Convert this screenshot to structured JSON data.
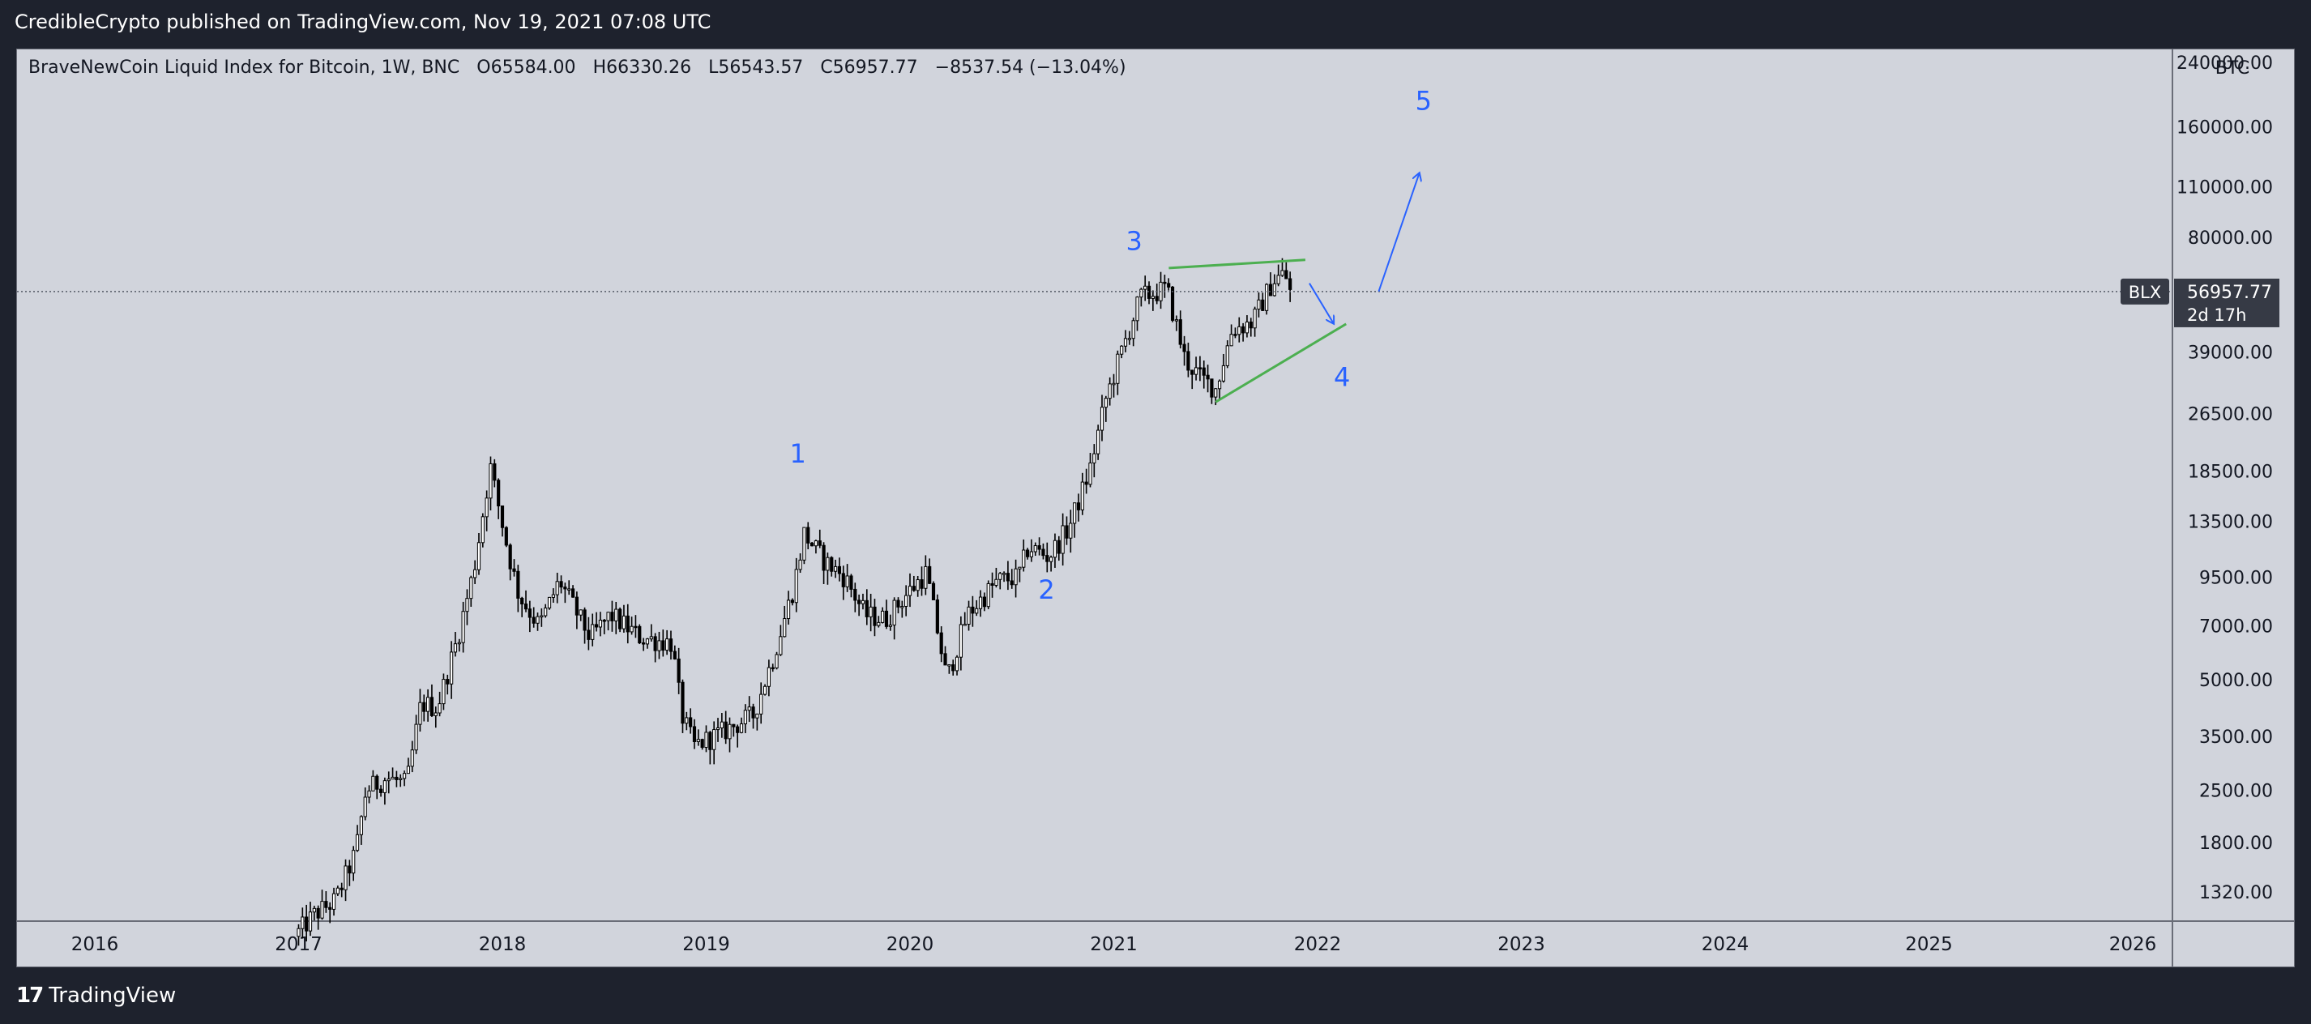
{
  "header": {
    "publisher_line": "CredibleCrypto published on TradingView.com, Nov 19, 2021 07:08 UTC"
  },
  "legend": {
    "title": "BraveNewCoin Liquid Index for Bitcoin, 1W, BNC",
    "open": "O65584.00",
    "high": "H66330.26",
    "low": "L56543.57",
    "close": "C56957.77",
    "change": "−8537.54 (−13.04%)"
  },
  "footer": {
    "brand": "TradingView"
  },
  "colors": {
    "background": "#d1d4dc",
    "candle": "#000000",
    "wave_label": "#2962ff",
    "trendline": "#4caf50",
    "arrow": "#2962ff",
    "price_tag": "#363a45"
  },
  "chart_data": {
    "type": "candlestick",
    "symbol": "BLX",
    "timeframe": "1W",
    "y_scale": "log",
    "ylim": [
      1100,
      260000
    ],
    "y_unit": "BTC",
    "y_ticks": [
      "240000.00",
      "160000.00",
      "110000.00",
      "80000.00",
      "39000.00",
      "26500.00",
      "18500.00",
      "13500.00",
      "9500.00",
      "7000.00",
      "5000.00",
      "3500.00",
      "2500.00",
      "1800.00",
      "1320.00"
    ],
    "x_ticks": [
      "2016",
      "2017",
      "2018",
      "2019",
      "2020",
      "2021",
      "2022",
      "2023",
      "2024",
      "2025",
      "2026"
    ],
    "last_price": {
      "symbol": "BLX",
      "value": "56957.77",
      "countdown": "2d 17h"
    },
    "price_path": [
      [
        2017.0,
        1000
      ],
      [
        2017.1,
        1150
      ],
      [
        2017.2,
        1250
      ],
      [
        2017.3,
        1700
      ],
      [
        2017.35,
        2500
      ],
      [
        2017.45,
        2700
      ],
      [
        2017.55,
        2600
      ],
      [
        2017.62,
        4300
      ],
      [
        2017.7,
        4200
      ],
      [
        2017.8,
        6500
      ],
      [
        2017.88,
        10000
      ],
      [
        2017.96,
        19000
      ],
      [
        2018.05,
        11000
      ],
      [
        2018.1,
        8500
      ],
      [
        2018.2,
        7000
      ],
      [
        2018.3,
        9300
      ],
      [
        2018.45,
        6500
      ],
      [
        2018.55,
        7500
      ],
      [
        2018.7,
        6500
      ],
      [
        2018.85,
        6300
      ],
      [
        2018.9,
        4000
      ],
      [
        2018.96,
        3300
      ],
      [
        2019.1,
        3600
      ],
      [
        2019.25,
        4000
      ],
      [
        2019.35,
        5800
      ],
      [
        2019.45,
        9000
      ],
      [
        2019.5,
        12500
      ],
      [
        2019.6,
        10500
      ],
      [
        2019.7,
        9500
      ],
      [
        2019.8,
        7500
      ],
      [
        2019.9,
        7300
      ],
      [
        2020.0,
        8500
      ],
      [
        2020.1,
        9800
      ],
      [
        2020.2,
        5000
      ],
      [
        2020.3,
        7500
      ],
      [
        2020.45,
        9300
      ],
      [
        2020.55,
        9500
      ],
      [
        2020.6,
        11500
      ],
      [
        2020.7,
        10800
      ],
      [
        2020.8,
        13000
      ],
      [
        2020.9,
        18500
      ],
      [
        2020.98,
        29000
      ],
      [
        2021.05,
        38000
      ],
      [
        2021.15,
        55000
      ],
      [
        2021.28,
        58000
      ],
      [
        2021.37,
        37000
      ],
      [
        2021.45,
        33000
      ],
      [
        2021.52,
        31000
      ],
      [
        2021.6,
        45000
      ],
      [
        2021.7,
        47000
      ],
      [
        2021.8,
        61000
      ],
      [
        2021.86,
        64000
      ],
      [
        2021.88,
        57000
      ]
    ],
    "annotations": [
      {
        "type": "wave_label",
        "text": "1",
        "x": 2019.45,
        "y": 19500
      },
      {
        "type": "wave_label",
        "text": "2",
        "x": 2020.67,
        "y": 8300
      },
      {
        "type": "wave_label",
        "text": "3",
        "x": 2021.1,
        "y": 74000
      },
      {
        "type": "wave_label",
        "text": "4",
        "x": 2022.12,
        "y": 31500
      },
      {
        "type": "wave_label",
        "text": "5",
        "x": 2022.52,
        "y": 178000
      },
      {
        "type": "trendline",
        "x1": 2021.27,
        "y1": 66000,
        "x2": 2021.94,
        "y2": 69500
      },
      {
        "type": "trendline",
        "x1": 2021.5,
        "y1": 28500,
        "x2": 2022.14,
        "y2": 46500
      },
      {
        "type": "arrow",
        "x1": 2021.96,
        "y1": 60000,
        "x2": 2022.08,
        "y2": 46500
      },
      {
        "type": "arrow",
        "x1": 2022.3,
        "y1": 57000,
        "x2": 2022.5,
        "y2": 120000
      }
    ]
  }
}
